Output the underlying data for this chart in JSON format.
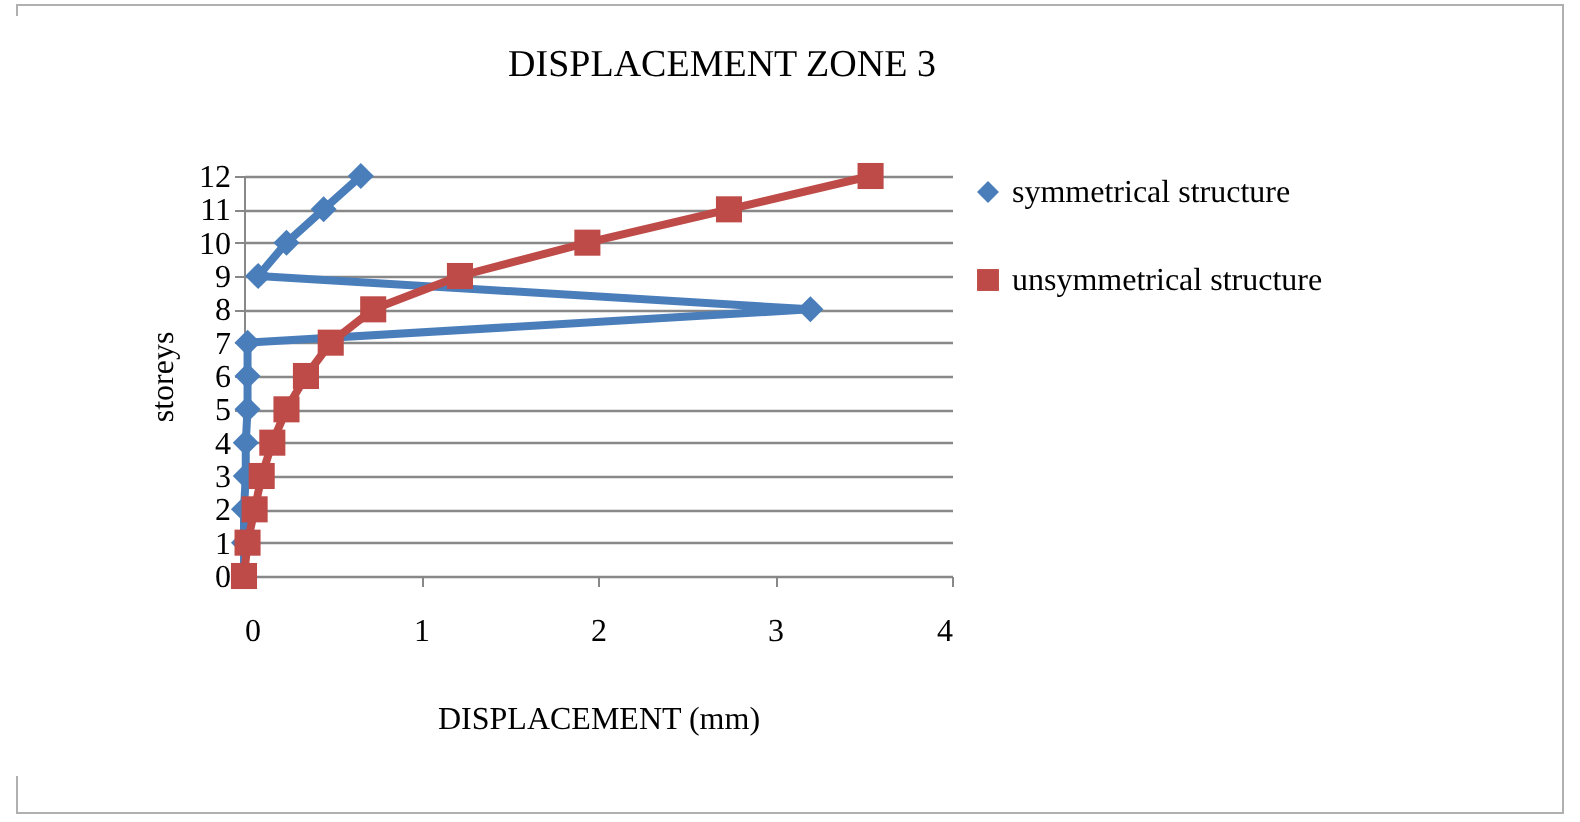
{
  "chart_data": {
    "type": "line",
    "title": "DISPLACEMENT ZONE 3",
    "xlabel": "DISPLACEMENT (mm)",
    "ylabel": "storeys",
    "xlim": [
      0,
      4
    ],
    "xticks": [
      0,
      1,
      2,
      3,
      4
    ],
    "ylim": [
      0,
      12
    ],
    "yticks": [
      0,
      1,
      2,
      3,
      4,
      5,
      6,
      7,
      8,
      9,
      10,
      11,
      12
    ],
    "grid": "y",
    "legend": "right",
    "series": [
      {
        "name": "symmetrical structure",
        "color": "#4a7ebb",
        "marker": "diamond",
        "x": [
          0,
          0,
          0,
          0.01,
          0.01,
          0.02,
          0.02,
          0.02,
          3.2,
          0.08,
          0.24,
          0.45,
          0.66
        ],
        "values": [
          0,
          1,
          2,
          3,
          4,
          5,
          6,
          7,
          8,
          9,
          10,
          11,
          12
        ]
      },
      {
        "name": "unsymmetrical structure",
        "color": "#be4b48",
        "marker": "square",
        "x": [
          0,
          0.02,
          0.06,
          0.1,
          0.16,
          0.24,
          0.35,
          0.49,
          0.73,
          1.22,
          1.94,
          2.74,
          3.54
        ],
        "values": [
          0,
          1,
          2,
          3,
          4,
          5,
          6,
          7,
          8,
          9,
          10,
          11,
          12
        ]
      }
    ]
  }
}
